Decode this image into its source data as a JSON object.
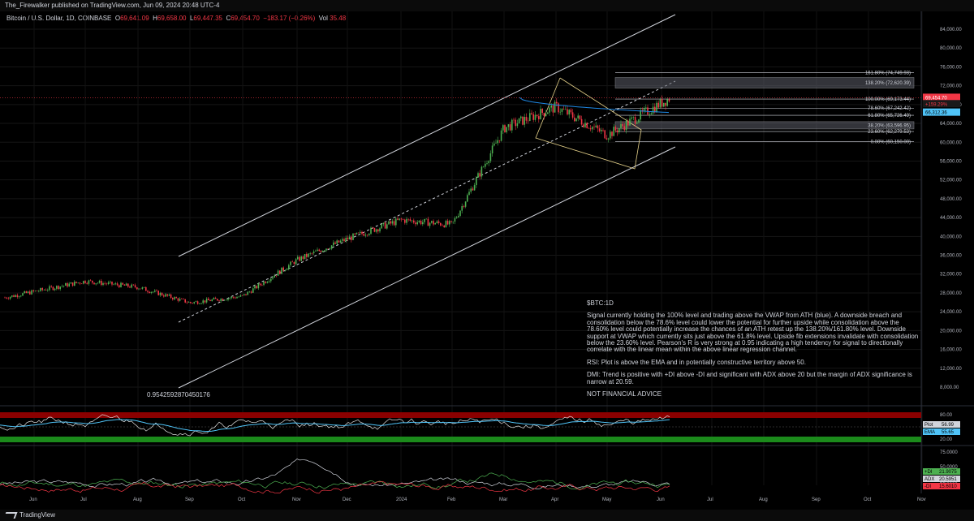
{
  "header": {
    "publisher": "The_Firewalker published on TradingView.com, Jun 09, 2024 20:48 UTC-4"
  },
  "symbol": {
    "name": "Bitcoin / U.S. Dollar, 1D, COINBASE",
    "open_label": "O",
    "open": "69,641.09",
    "high_label": "H",
    "high": "69,658.00",
    "low_label": "L",
    "low": "69,447.35",
    "close_label": "C",
    "close": "69,454.70",
    "change": "−183.17 (−0.26%)",
    "vol_label": "Vol",
    "vol": "35.48"
  },
  "colors": {
    "up": "#26a69a",
    "up_bright": "#4caf50",
    "down": "#f23645",
    "vwap": "#1e88e5",
    "ema": "#4fc3f7",
    "rsi_band_top": "#8b0000",
    "rsi_band_bottom": "#1b8a1b",
    "plus_di": "#4caf50",
    "minus_di": "#f23645",
    "adx": "#d1d4dc"
  },
  "regression": {
    "pearson": "0.9542592870450176"
  },
  "note": {
    "ticker": "$BTC:1D",
    "p1": "Signal currently holding the 100% level and trading above the VWAP from ATH (blue). A downside breach and consolidation below the 78.6% level could lower the potential for further upside while consolidation above the 78.60% level could potentially increase the chances of an ATH retest up the 138.20%/161.80% level. Downside support at VWAP which currently sits just above the 61.8% level. Upside fib extensions invalidate with consolidation below the 23.60% level. Pearson's R is very strong at 0.95 indicating a high tendency for signal to directionally correlate with the linear mean within the above linear regression channel.",
    "p2": "RSI: Plot is above the EMA and in potentially constructive territory above 50.",
    "p3": "DMI: Trend is positive with +DI above -DI and significant with ADX above 20 but the margin of ADX significance is narrow at 20.59.",
    "p4": "NOT FINANCIAL ADVICE"
  },
  "fib_levels": [
    {
      "label": "161.80% (74,749.93)",
      "value": 74749.93
    },
    {
      "label": "138.20% (72,620.39)",
      "value": 72620.39
    },
    {
      "label": "100.00% (69,173.44)",
      "value": 69173.44
    },
    {
      "label": "78.60% (67,242.42)",
      "value": 67242.42
    },
    {
      "label": "61.80% (65,726.49)",
      "value": 65726.49
    },
    {
      "label": "38.20% (63,596.95)",
      "value": 63596.95
    },
    {
      "label": "23.60% (62,279.53)",
      "value": 62279.53
    },
    {
      "label": "0.00% (60,150.00)",
      "value": 60150.0
    }
  ],
  "price_badges": {
    "last": "69,454.70",
    "countdown": "+159.29%",
    "vwap": "66,312.36"
  },
  "rsi_legend": [
    {
      "name": "Plot",
      "value": "56.99"
    },
    {
      "name": "EMA",
      "value": "55.65"
    }
  ],
  "dmi_legend": [
    {
      "name": "+DI",
      "value": "21.9075"
    },
    {
      "name": "ADX",
      "value": "20.5951"
    },
    {
      "name": "-DI",
      "value": "15.6010"
    }
  ],
  "footer": {
    "brand": "TradingView"
  },
  "chart_data": [
    {
      "type": "candlestick",
      "title": "Bitcoin / U.S. Dollar, 1D, COINBASE",
      "x_ticks": [
        "Jun",
        "Jul",
        "Aug",
        "Sep",
        "Oct",
        "Nov",
        "Dec",
        "2024",
        "Feb",
        "Mar",
        "Apr",
        "May",
        "Jun",
        "Jul",
        "Aug",
        "Sep",
        "Oct",
        "Nov"
      ],
      "y_ticks": [
        84000,
        80000,
        76000,
        72000,
        68000,
        64000,
        60000,
        56000,
        52000,
        48000,
        44000,
        40000,
        36000,
        32000,
        28000,
        24000,
        20000,
        16000,
        12000,
        8000
      ],
      "ylim": [
        6000,
        88000
      ],
      "close_path_approx": [
        {
          "x": "Jun",
          "y": 26800
        },
        {
          "x": "Jul",
          "y": 30200
        },
        {
          "x": "Aug",
          "y": 29200
        },
        {
          "x": "Sep",
          "y": 26000
        },
        {
          "x": "Oct",
          "y": 27300
        },
        {
          "x": "Nov",
          "y": 34500
        },
        {
          "x": "Dec",
          "y": 39000
        },
        {
          "x": "2024",
          "y": 43000
        },
        {
          "x": "Feb",
          "y": 43200
        },
        {
          "x": "Mar",
          "y": 62000
        },
        {
          "x": "Apr",
          "y": 69000
        },
        {
          "x": "May",
          "y": 60500
        },
        {
          "x": "Jun",
          "y": 69454.7
        }
      ]
    },
    {
      "type": "line",
      "title": "RSI",
      "series": [
        {
          "name": "Plot",
          "last": 56.99
        },
        {
          "name": "EMA",
          "last": 55.65
        }
      ],
      "y_ticks": [
        80,
        20
      ]
    },
    {
      "type": "line",
      "title": "DMI",
      "series": [
        {
          "name": "+DI",
          "last": 21.9075
        },
        {
          "name": "ADX",
          "last": 20.5951
        },
        {
          "name": "-DI",
          "last": 15.601
        }
      ],
      "y_ticks": [
        75,
        50,
        25
      ]
    }
  ]
}
